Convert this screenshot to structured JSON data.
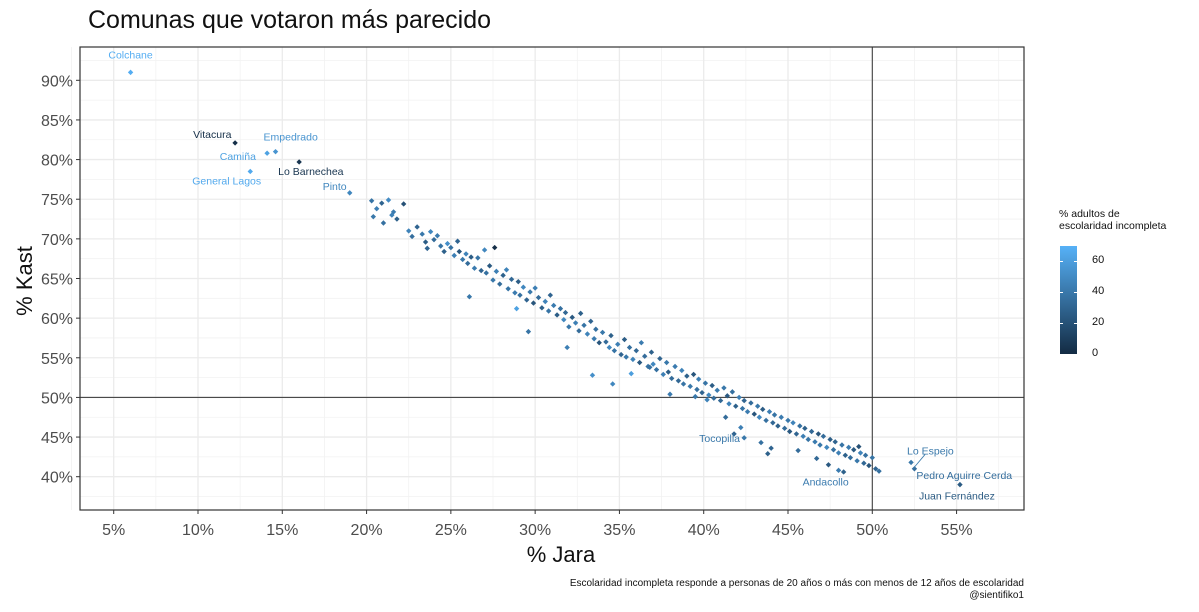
{
  "chart_data": {
    "type": "scatter",
    "title": "Comunas que votaron más parecido",
    "xlabel": "% Jara",
    "ylabel": "% Kast",
    "xlim": [
      3,
      59
    ],
    "ylim": [
      35.8,
      94.2
    ],
    "x_ticks": [
      5,
      10,
      15,
      20,
      25,
      30,
      35,
      40,
      45,
      50,
      55
    ],
    "x_tick_labels": [
      "5%",
      "10%",
      "15%",
      "20%",
      "25%",
      "30%",
      "35%",
      "40%",
      "45%",
      "50%",
      "55%"
    ],
    "y_ticks": [
      40,
      45,
      50,
      55,
      60,
      65,
      70,
      75,
      80,
      85,
      90
    ],
    "y_tick_labels": [
      "40%",
      "45%",
      "50%",
      "55%",
      "60%",
      "65%",
      "70%",
      "75%",
      "80%",
      "85%",
      "90%"
    ],
    "reference_lines": {
      "x": 50,
      "y": 50
    },
    "grid": true,
    "color_scale": {
      "title": "% adultos de escolaridad incompleta",
      "title_lines": [
        "% adultos de",
        "escolaridad incompleta"
      ],
      "low_color": "#132B43",
      "high_color": "#56B1F7",
      "range": [
        0,
        70
      ],
      "ticks": [
        0,
        20,
        40,
        60
      ],
      "tick_labels": [
        "0",
        "20",
        "40",
        "60"
      ]
    },
    "legend_position": "right",
    "labeled_points": [
      {
        "name": "Colchane",
        "x": 6.0,
        "y": 91.0,
        "c": 68
      },
      {
        "name": "Vitacura",
        "x": 12.2,
        "y": 82.1,
        "c": 2
      },
      {
        "name": "Empedrado",
        "x": 14.6,
        "y": 81.0,
        "c": 55
      },
      {
        "name": "Camiña",
        "x": 14.1,
        "y": 80.8,
        "c": 62
      },
      {
        "name": "General Lagos",
        "x": 13.1,
        "y": 78.5,
        "c": 66
      },
      {
        "name": "Lo Barnechea",
        "x": 16.0,
        "y": 79.7,
        "c": 5
      },
      {
        "name": "Pinto",
        "x": 19.0,
        "y": 75.8,
        "c": 48
      },
      {
        "name": "Tocopilla",
        "x": 42.4,
        "y": 44.9,
        "c": 40
      },
      {
        "name": "Lo Espejo",
        "x": 52.3,
        "y": 41.8,
        "c": 40
      },
      {
        "name": "Pedro Aguirre Cerda",
        "x": 52.5,
        "y": 41.0,
        "c": 35
      },
      {
        "name": "Andacollo",
        "x": 48.0,
        "y": 40.8,
        "c": 42
      },
      {
        "name": "Juan Fernández",
        "x": 55.2,
        "y": 39.0,
        "c": 25
      }
    ],
    "points": [
      [
        20.3,
        74.8,
        38
      ],
      [
        20.6,
        73.8,
        44
      ],
      [
        20.4,
        72.8,
        40
      ],
      [
        20.9,
        74.5,
        30
      ],
      [
        21.3,
        74.9,
        50
      ],
      [
        21.0,
        72.0,
        36
      ],
      [
        21.6,
        73.4,
        42
      ],
      [
        22.2,
        74.4,
        20
      ],
      [
        21.8,
        72.5,
        28
      ],
      [
        22.5,
        71.0,
        46
      ],
      [
        22.7,
        70.3,
        35
      ],
      [
        23.0,
        71.5,
        30
      ],
      [
        23.3,
        70.6,
        40
      ],
      [
        23.5,
        69.6,
        26
      ],
      [
        23.8,
        70.9,
        48
      ],
      [
        24.0,
        69.9,
        33
      ],
      [
        24.2,
        70.4,
        42
      ],
      [
        24.4,
        69.1,
        38
      ],
      [
        24.6,
        68.4,
        28
      ],
      [
        24.8,
        69.4,
        52
      ],
      [
        25.0,
        68.9,
        36
      ],
      [
        25.2,
        67.9,
        44
      ],
      [
        25.4,
        69.7,
        30
      ],
      [
        25.5,
        68.4,
        22
      ],
      [
        25.7,
        67.4,
        40
      ],
      [
        25.9,
        68.1,
        46
      ],
      [
        26.0,
        66.9,
        34
      ],
      [
        26.2,
        67.7,
        26
      ],
      [
        26.4,
        66.3,
        42
      ],
      [
        26.6,
        67.6,
        38
      ],
      [
        26.8,
        66.0,
        30
      ],
      [
        27.0,
        68.6,
        48
      ],
      [
        27.1,
        65.7,
        36
      ],
      [
        27.3,
        66.6,
        24
      ],
      [
        27.6,
        68.9,
        2
      ],
      [
        27.5,
        64.8,
        40
      ],
      [
        27.7,
        65.9,
        44
      ],
      [
        27.9,
        64.3,
        34
      ],
      [
        28.1,
        65.4,
        28
      ],
      [
        28.3,
        66.1,
        46
      ],
      [
        28.4,
        63.7,
        38
      ],
      [
        28.6,
        64.9,
        32
      ],
      [
        28.8,
        63.2,
        42
      ],
      [
        29.0,
        64.6,
        26
      ],
      [
        29.1,
        62.9,
        36
      ],
      [
        29.3,
        63.9,
        48
      ],
      [
        29.5,
        62.3,
        30
      ],
      [
        29.7,
        63.3,
        40
      ],
      [
        29.9,
        61.9,
        22
      ],
      [
        30.0,
        63.8,
        44
      ],
      [
        30.2,
        62.6,
        34
      ],
      [
        30.4,
        61.3,
        28
      ],
      [
        30.6,
        62.1,
        46
      ],
      [
        30.8,
        60.9,
        38
      ],
      [
        30.9,
        62.9,
        30
      ],
      [
        31.1,
        61.6,
        42
      ],
      [
        31.3,
        60.4,
        26
      ],
      [
        31.5,
        61.2,
        36
      ],
      [
        31.7,
        59.8,
        48
      ],
      [
        31.8,
        60.7,
        32
      ],
      [
        32.0,
        58.9,
        40
      ],
      [
        32.2,
        60.1,
        24
      ],
      [
        32.4,
        59.4,
        44
      ],
      [
        32.6,
        58.4,
        34
      ],
      [
        32.7,
        60.6,
        28
      ],
      [
        32.9,
        59.1,
        38
      ],
      [
        33.1,
        58.0,
        46
      ],
      [
        33.3,
        59.6,
        30
      ],
      [
        33.5,
        57.4,
        42
      ],
      [
        33.6,
        58.6,
        36
      ],
      [
        33.8,
        56.9,
        22
      ],
      [
        34.0,
        58.2,
        40
      ],
      [
        34.2,
        57.0,
        34
      ],
      [
        34.4,
        56.3,
        48
      ],
      [
        34.5,
        57.8,
        28
      ],
      [
        34.7,
        55.9,
        38
      ],
      [
        34.9,
        56.7,
        44
      ],
      [
        35.1,
        55.4,
        30
      ],
      [
        35.3,
        57.3,
        26
      ],
      [
        35.4,
        55.1,
        40
      ],
      [
        35.6,
        56.3,
        36
      ],
      [
        35.8,
        54.8,
        46
      ],
      [
        36.0,
        55.9,
        32
      ],
      [
        36.2,
        54.4,
        24
      ],
      [
        36.3,
        56.9,
        42
      ],
      [
        36.5,
        55.2,
        34
      ],
      [
        36.7,
        53.9,
        38
      ],
      [
        36.9,
        55.7,
        28
      ],
      [
        37.0,
        54.2,
        48
      ],
      [
        37.2,
        53.5,
        36
      ],
      [
        37.4,
        54.9,
        30
      ],
      [
        37.6,
        52.9,
        44
      ],
      [
        37.8,
        54.4,
        40
      ],
      [
        37.9,
        53.2,
        26
      ],
      [
        38.1,
        52.4,
        34
      ],
      [
        38.3,
        53.9,
        42
      ],
      [
        38.5,
        52.1,
        32
      ],
      [
        38.7,
        53.4,
        46
      ],
      [
        38.8,
        51.7,
        38
      ],
      [
        39.0,
        52.7,
        28
      ],
      [
        39.2,
        51.4,
        40
      ],
      [
        39.4,
        52.9,
        22
      ],
      [
        39.6,
        51.0,
        36
      ],
      [
        39.7,
        52.3,
        44
      ],
      [
        39.9,
        50.6,
        30
      ],
      [
        40.1,
        51.8,
        38
      ],
      [
        40.3,
        50.3,
        48
      ],
      [
        40.5,
        51.5,
        26
      ],
      [
        40.6,
        49.9,
        34
      ],
      [
        40.8,
        50.9,
        42
      ],
      [
        41.0,
        49.6,
        32
      ],
      [
        41.2,
        51.2,
        40
      ],
      [
        41.4,
        50.2,
        24
      ],
      [
        41.5,
        49.2,
        46
      ],
      [
        41.7,
        50.7,
        36
      ],
      [
        41.9,
        48.9,
        28
      ],
      [
        42.1,
        50.0,
        44
      ],
      [
        42.3,
        48.6,
        38
      ],
      [
        42.4,
        49.6,
        30
      ],
      [
        42.6,
        48.2,
        42
      ],
      [
        42.8,
        49.3,
        34
      ],
      [
        43.0,
        47.9,
        22
      ],
      [
        43.2,
        48.9,
        40
      ],
      [
        43.3,
        47.5,
        48
      ],
      [
        43.5,
        48.5,
        26
      ],
      [
        43.7,
        47.1,
        36
      ],
      [
        43.9,
        48.2,
        44
      ],
      [
        44.1,
        46.8,
        32
      ],
      [
        44.2,
        47.8,
        38
      ],
      [
        44.4,
        46.4,
        28
      ],
      [
        44.6,
        47.5,
        42
      ],
      [
        44.8,
        46.1,
        34
      ],
      [
        45.0,
        47.1,
        40
      ],
      [
        45.1,
        45.7,
        24
      ],
      [
        45.3,
        46.8,
        46
      ],
      [
        45.5,
        45.4,
        30
      ],
      [
        45.7,
        46.4,
        36
      ],
      [
        45.9,
        45.1,
        44
      ],
      [
        46.0,
        46.1,
        28
      ],
      [
        46.2,
        44.7,
        38
      ],
      [
        46.4,
        45.7,
        32
      ],
      [
        46.6,
        44.4,
        42
      ],
      [
        46.8,
        45.4,
        22
      ],
      [
        46.9,
        44.0,
        40
      ],
      [
        47.1,
        45.1,
        34
      ],
      [
        47.3,
        43.7,
        48
      ],
      [
        47.5,
        44.7,
        26
      ],
      [
        47.7,
        43.4,
        36
      ],
      [
        47.8,
        44.4,
        30
      ],
      [
        48.0,
        43.0,
        44
      ],
      [
        48.2,
        44.0,
        38
      ],
      [
        48.4,
        42.7,
        28
      ],
      [
        48.6,
        43.7,
        42
      ],
      [
        48.7,
        42.4,
        34
      ],
      [
        48.9,
        43.4,
        24
      ],
      [
        49.1,
        42.0,
        40
      ],
      [
        49.3,
        43.0,
        46
      ],
      [
        49.5,
        41.7,
        32
      ],
      [
        49.6,
        42.7,
        36
      ],
      [
        49.8,
        41.4,
        22
      ],
      [
        50.0,
        42.4,
        38
      ],
      [
        50.2,
        41.0,
        30
      ],
      [
        21.5,
        73.0,
        46
      ],
      [
        23.6,
        68.8,
        30
      ],
      [
        26.1,
        62.7,
        40
      ],
      [
        28.9,
        61.2,
        62
      ],
      [
        29.6,
        58.3,
        38
      ],
      [
        31.9,
        56.3,
        44
      ],
      [
        33.4,
        52.8,
        52
      ],
      [
        34.6,
        51.7,
        48
      ],
      [
        35.7,
        53.0,
        60
      ],
      [
        36.8,
        53.8,
        36
      ],
      [
        38.0,
        50.4,
        42
      ],
      [
        39.5,
        50.1,
        40
      ],
      [
        40.2,
        49.7,
        46
      ],
      [
        41.3,
        47.5,
        34
      ],
      [
        42.2,
        46.2,
        44
      ],
      [
        43.4,
        44.3,
        36
      ],
      [
        44.0,
        43.6,
        30
      ],
      [
        45.6,
        43.3,
        34
      ],
      [
        47.4,
        41.5,
        24
      ],
      [
        48.3,
        40.6,
        28
      ],
      [
        49.2,
        43.8,
        20
      ],
      [
        50.4,
        40.7,
        36
      ],
      [
        46.7,
        42.3,
        32
      ],
      [
        41.8,
        45.4,
        30
      ],
      [
        43.8,
        42.9,
        28
      ]
    ]
  }
}
